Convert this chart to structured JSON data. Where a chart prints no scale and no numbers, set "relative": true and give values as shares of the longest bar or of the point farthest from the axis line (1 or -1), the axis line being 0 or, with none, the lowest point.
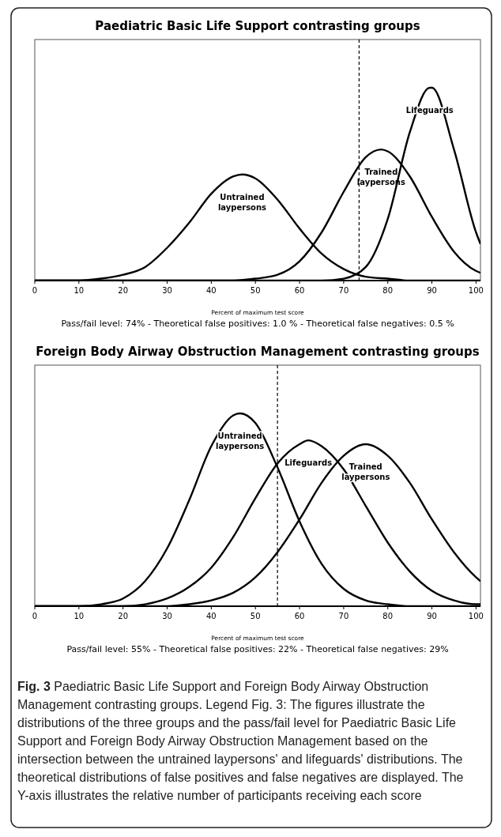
{
  "chart_data": [
    {
      "type": "line",
      "title": "Paediatric Basic Life Support contrasting groups",
      "xlabel": "Percent of maximum test score",
      "relative": true,
      "xlim": [
        0,
        101
      ],
      "xticks": [
        0,
        10,
        20,
        30,
        40,
        50,
        60,
        70,
        80,
        90,
        100
      ],
      "tick_labels": "x",
      "grid": false,
      "series": [
        {
          "name": "Untrained laypersons",
          "color": "#000000",
          "x": [
            0,
            5,
            10,
            15,
            20,
            25,
            30,
            35,
            40,
            45,
            47,
            50,
            55,
            60,
            65,
            70,
            75,
            80,
            85,
            90,
            95,
            100,
            101
          ],
          "values": [
            0,
            0,
            0,
            0.01,
            0.03,
            0.07,
            0.17,
            0.3,
            0.45,
            0.54,
            0.55,
            0.53,
            0.42,
            0.27,
            0.14,
            0.06,
            0.02,
            0.01,
            0,
            0,
            0,
            0,
            0
          ]
        },
        {
          "name": "Trained laypersons",
          "color": "#000000",
          "x": [
            0,
            5,
            10,
            15,
            20,
            25,
            30,
            35,
            40,
            45,
            50,
            55,
            60,
            65,
            70,
            75,
            78.5,
            80,
            85,
            90,
            95,
            100,
            101
          ],
          "values": [
            0,
            0,
            0,
            0,
            0,
            0,
            0,
            0,
            0,
            0,
            0.01,
            0.03,
            0.1,
            0.25,
            0.46,
            0.64,
            0.68,
            0.67,
            0.54,
            0.33,
            0.15,
            0.05,
            0.04
          ]
        },
        {
          "name": "Lifeguards",
          "color": "#000000",
          "x": [
            0,
            10,
            20,
            30,
            40,
            50,
            60,
            65,
            70,
            75,
            80,
            85,
            89.5,
            90,
            95,
            100,
            101
          ],
          "values": [
            0,
            0,
            0,
            0,
            0,
            0,
            0,
            0,
            0.01,
            0.07,
            0.32,
            0.77,
            1,
            1,
            0.68,
            0.25,
            0.19
          ]
        }
      ],
      "ref_lines": [
        {
          "axis": "x",
          "value": 73.5,
          "line_style": "dashed",
          "color": "#000000"
        }
      ],
      "annotations": [
        "Pass/fail level: 74% - Theoretical false positives: 1.0 % - Theoretical false negatives: 0.5 %"
      ]
    },
    {
      "type": "line",
      "title": "Foreign Body Airway Obstruction Management contrasting groups",
      "xlabel": "Percent of maximum test score",
      "relative": true,
      "xlim": [
        0,
        101
      ],
      "xticks": [
        0,
        10,
        20,
        30,
        40,
        50,
        60,
        70,
        80,
        90,
        100
      ],
      "tick_labels": "x",
      "grid": false,
      "series": [
        {
          "name": "Untrained laypersons",
          "color": "#000000",
          "x": [
            0,
            5,
            10,
            15,
            20,
            25,
            30,
            35,
            40,
            45,
            46.5,
            50,
            55,
            60,
            65,
            70,
            75,
            80,
            85,
            90,
            95,
            100,
            101
          ],
          "values": [
            0,
            0,
            0,
            0.01,
            0.04,
            0.13,
            0.3,
            0.55,
            0.83,
            0.99,
            1,
            0.95,
            0.72,
            0.44,
            0.22,
            0.09,
            0.03,
            0.01,
            0,
            0,
            0,
            0,
            0
          ]
        },
        {
          "name": "Lifeguards",
          "color": "#000000",
          "x": [
            0,
            5,
            10,
            15,
            20,
            25,
            30,
            35,
            40,
            45,
            50,
            55,
            60,
            62,
            65,
            70,
            75,
            80,
            85,
            90,
            95,
            100,
            101
          ],
          "values": [
            0,
            0,
            0,
            0,
            0,
            0.01,
            0.04,
            0.1,
            0.2,
            0.36,
            0.56,
            0.74,
            0.84,
            0.86,
            0.83,
            0.71,
            0.52,
            0.33,
            0.18,
            0.08,
            0.03,
            0.01,
            0.01
          ]
        },
        {
          "name": "Trained laypersons",
          "color": "#000000",
          "x": [
            0,
            5,
            10,
            15,
            20,
            25,
            30,
            35,
            40,
            45,
            50,
            55,
            60,
            65,
            70,
            75,
            80,
            85,
            90,
            95,
            100,
            101
          ],
          "values": [
            0,
            0,
            0,
            0,
            0,
            0,
            0,
            0.01,
            0.03,
            0.07,
            0.15,
            0.28,
            0.45,
            0.64,
            0.78,
            0.84,
            0.78,
            0.64,
            0.45,
            0.28,
            0.15,
            0.13
          ]
        }
      ],
      "ref_lines": [
        {
          "axis": "x",
          "value": 55,
          "line_style": "dashed",
          "color": "#000000"
        }
      ],
      "annotations": [
        "Pass/fail level: 55% - Theoretical false positives: 22% - Theoretical false negatives: 29%",
        "Fig. 3 Paediatric Basic Life Support and Foreign Body Airway Obstruction Management contrasting groups. Legend Fig. 3: The figures illustrate the distributions of the three groups and the pass/fail level for Paediatric Basic Life Support and Foreign Body Airway Obstruction Management based on the intersection between the untrained laypersons' and lifeguards' distributions. The theoretical distributions of false positives and false negatives are displayed. The Y-axis illustrates the relative number of participants receiving each score"
      ]
    }
  ]
}
